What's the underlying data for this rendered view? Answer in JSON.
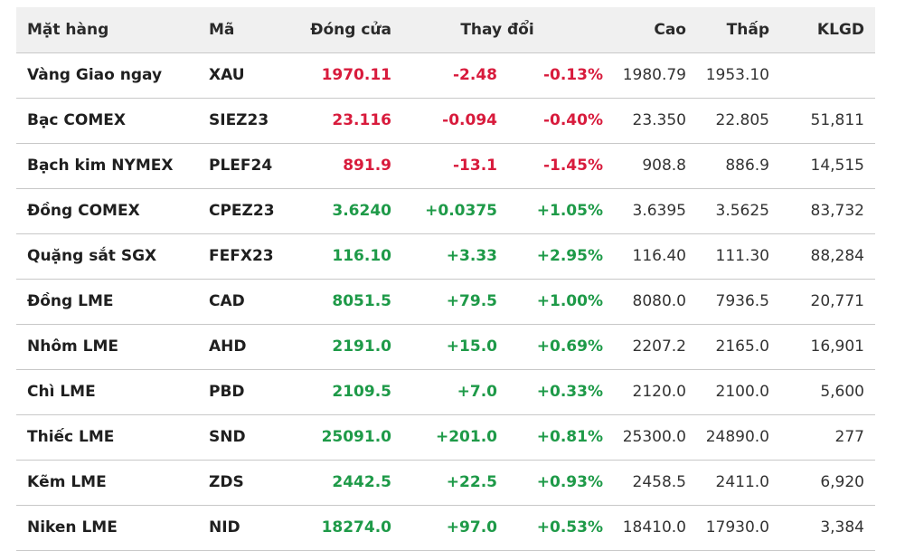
{
  "colors": {
    "negative": "#d81b3c",
    "positive": "#1e9a48",
    "header_bg": "#f0f0f0"
  },
  "headers": {
    "name": "Mặt hàng",
    "code": "Mã",
    "close": "Đóng cửa",
    "change": "Thay đổi",
    "high": "Cao",
    "low": "Thấp",
    "volume": "KLGD"
  },
  "rows": [
    {
      "name": "Vàng Giao ngay",
      "code": "XAU",
      "close": "1970.11",
      "change": "-2.48",
      "pct": "-0.13%",
      "high": "1980.79",
      "low": "1953.10",
      "volume": "",
      "direction": "neg"
    },
    {
      "name": "Bạc COMEX",
      "code": "SIEZ23",
      "close": "23.116",
      "change": "-0.094",
      "pct": "-0.40%",
      "high": "23.350",
      "low": "22.805",
      "volume": "51,811",
      "direction": "neg"
    },
    {
      "name": "Bạch kim NYMEX",
      "code": "PLEF24",
      "close": "891.9",
      "change": "-13.1",
      "pct": "-1.45%",
      "high": "908.8",
      "low": "886.9",
      "volume": "14,515",
      "direction": "neg"
    },
    {
      "name": "Đồng COMEX",
      "code": "CPEZ23",
      "close": "3.6240",
      "change": "+0.0375",
      "pct": "+1.05%",
      "high": "3.6395",
      "low": "3.5625",
      "volume": "83,732",
      "direction": "pos"
    },
    {
      "name": "Quặng sắt SGX",
      "code": "FEFX23",
      "close": "116.10",
      "change": "+3.33",
      "pct": "+2.95%",
      "high": "116.40",
      "low": "111.30",
      "volume": "88,284",
      "direction": "pos"
    },
    {
      "name": "Đồng LME",
      "code": "CAD",
      "close": "8051.5",
      "change": "+79.5",
      "pct": "+1.00%",
      "high": "8080.0",
      "low": "7936.5",
      "volume": "20,771",
      "direction": "pos"
    },
    {
      "name": "Nhôm LME",
      "code": "AHD",
      "close": "2191.0",
      "change": "+15.0",
      "pct": "+0.69%",
      "high": "2207.2",
      "low": "2165.0",
      "volume": "16,901",
      "direction": "pos"
    },
    {
      "name": "Chì LME",
      "code": "PBD",
      "close": "2109.5",
      "change": "+7.0",
      "pct": "+0.33%",
      "high": "2120.0",
      "low": "2100.0",
      "volume": "5,600",
      "direction": "pos"
    },
    {
      "name": "Thiếc LME",
      "code": "SND",
      "close": "25091.0",
      "change": "+201.0",
      "pct": "+0.81%",
      "high": "25300.0",
      "low": "24890.0",
      "volume": "277",
      "direction": "pos"
    },
    {
      "name": "Kẽm LME",
      "code": "ZDS",
      "close": "2442.5",
      "change": "+22.5",
      "pct": "+0.93%",
      "high": "2458.5",
      "low": "2411.0",
      "volume": "6,920",
      "direction": "pos"
    },
    {
      "name": "Niken LME",
      "code": "NID",
      "close": "18274.0",
      "change": "+97.0",
      "pct": "+0.53%",
      "high": "18410.0",
      "low": "17930.0",
      "volume": "3,384",
      "direction": "pos"
    }
  ]
}
